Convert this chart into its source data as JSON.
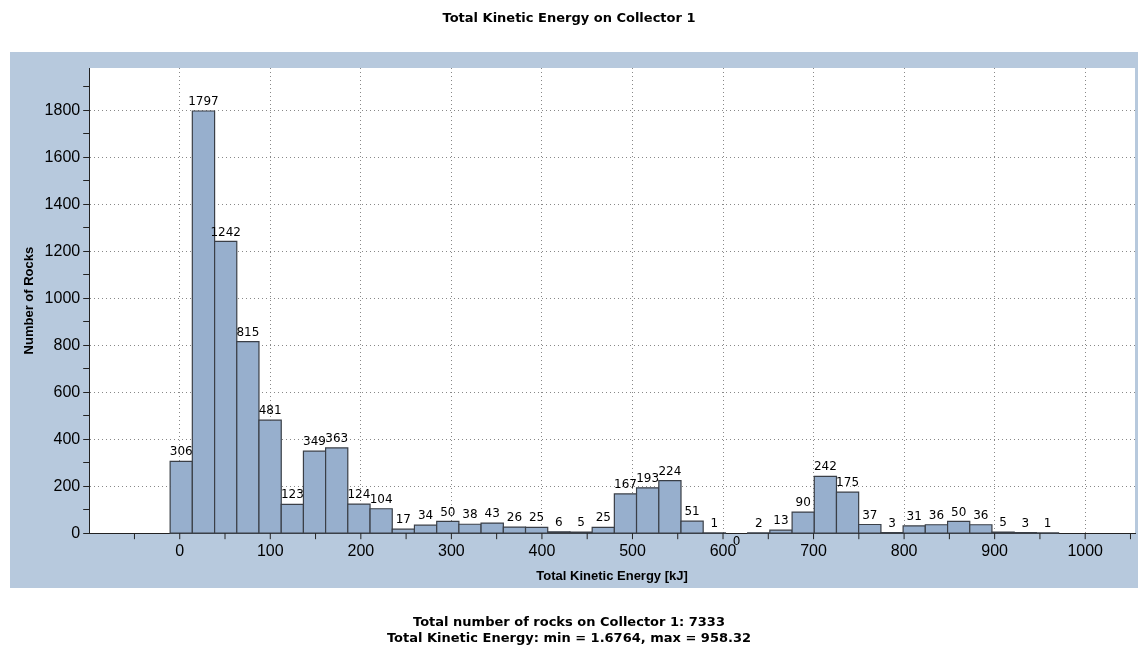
{
  "chart_data": {
    "type": "histogram",
    "title": "Total Kinetic Energy on Collector 1",
    "xlabel": "Total Kinetic Energy [kJ]",
    "ylabel": "Number of Rocks",
    "bins": [
      -10.6,
      13.9,
      38.5,
      63.0,
      87.5,
      112.1,
      136.6,
      161.1,
      185.6,
      210.2,
      234.7,
      259.2,
      283.8,
      308.3,
      332.8,
      357.4,
      381.9,
      406.4,
      431.0,
      455.5,
      480.0,
      504.5,
      529.1,
      553.6,
      578.1,
      602.7,
      627.2,
      651.7,
      676.3,
      700.8,
      725.3,
      749.8,
      774.4,
      798.9,
      823.4,
      848.0,
      872.5,
      897.0,
      921.6,
      946.1,
      970.6
    ],
    "values": [
      306,
      1797,
      1242,
      815,
      481,
      123,
      349,
      363,
      124,
      104,
      17,
      34,
      50,
      38,
      43,
      26,
      25,
      6,
      5,
      25,
      167,
      193,
      224,
      51,
      1,
      0,
      2,
      13,
      90,
      242,
      175,
      37,
      3,
      31,
      36,
      50,
      36,
      5,
      3,
      1
    ],
    "color": "#97afcd",
    "data_labels": true,
    "xlim": [
      -100,
      1055
    ],
    "xticks": [
      {
        "value": -50,
        "label": null
      },
      0,
      {
        "value": 50,
        "label": null
      },
      100,
      {
        "value": 150,
        "label": null
      },
      200,
      {
        "value": 250,
        "label": null
      },
      300,
      {
        "value": 350,
        "label": null
      },
      400,
      {
        "value": 450,
        "label": null
      },
      500,
      {
        "value": 550,
        "label": null
      },
      600,
      {
        "value": 650,
        "label": null
      },
      700,
      {
        "value": 750,
        "label": null
      },
      800,
      {
        "value": 850,
        "label": null
      },
      900,
      {
        "value": 950,
        "label": null
      },
      1000,
      {
        "value": 1050,
        "label": null
      }
    ],
    "ylim": [
      0,
      1980
    ],
    "yticks": [
      0,
      {
        "value": 100,
        "label": null
      },
      200,
      {
        "value": 300,
        "label": null
      },
      400,
      {
        "value": 500,
        "label": null
      },
      600,
      {
        "value": 700,
        "label": null
      },
      800,
      {
        "value": 900,
        "label": null
      },
      1000,
      {
        "value": 1100,
        "label": null
      },
      1200,
      {
        "value": 1300,
        "label": null
      },
      1400,
      {
        "value": 1500,
        "label": null
      },
      1600,
      {
        "value": 1700,
        "label": null
      },
      1800,
      {
        "value": 1900,
        "label": null
      }
    ],
    "grid": true,
    "annotations": [
      "Total number of rocks on Collector 1:  7333",
      "Total Kinetic Energy:  min = 1.6764,  max = 958.32"
    ]
  }
}
